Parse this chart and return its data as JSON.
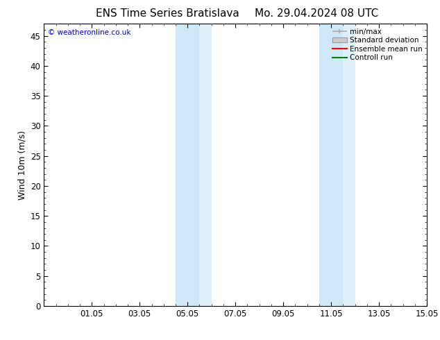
{
  "title_left": "ENS Time Series Bratislava",
  "title_right": "Mo. 29.04.2024 08 UTC",
  "ylabel": "Wind 10m (m/s)",
  "xtick_labels": [
    "01.05",
    "03.05",
    "05.05",
    "07.05",
    "09.05",
    "11.05",
    "13.05",
    "15.05"
  ],
  "xtick_positions": [
    2,
    4,
    6,
    8,
    10,
    12,
    14,
    16
  ],
  "xlim": [
    0,
    16
  ],
  "ylim": [
    0,
    47
  ],
  "ytick_positions": [
    0,
    5,
    10,
    15,
    20,
    25,
    30,
    35,
    40,
    45
  ],
  "ytick_labels": [
    "0",
    "5",
    "10",
    "15",
    "20",
    "25",
    "30",
    "35",
    "40",
    "45"
  ],
  "shaded_bands": [
    {
      "x_start": 5.5,
      "x_end": 6.5,
      "color": "#cfe8f7"
    },
    {
      "x_start": 6.5,
      "x_end": 7.0,
      "color": "#dff0fb"
    },
    {
      "x_start": 11.5,
      "x_end": 12.5,
      "color": "#cfe8f7"
    },
    {
      "x_start": 12.5,
      "x_end": 13.0,
      "color": "#dff0fb"
    }
  ],
  "legend_entries": [
    {
      "label": "min/max",
      "color": "#aaaaaa",
      "style": "minmax"
    },
    {
      "label": "Standard deviation",
      "color": "#cccccc",
      "style": "stddev"
    },
    {
      "label": "Ensemble mean run",
      "color": "#ff0000",
      "style": "line"
    },
    {
      "label": "Controll run",
      "color": "#008000",
      "style": "line"
    }
  ],
  "watermark_text": "© weatheronline.co.uk",
  "watermark_color": "#0000cc",
  "bg_color": "#ffffff",
  "title_fontsize": 11,
  "tick_fontsize": 8.5,
  "ylabel_fontsize": 9,
  "legend_fontsize": 7.5
}
